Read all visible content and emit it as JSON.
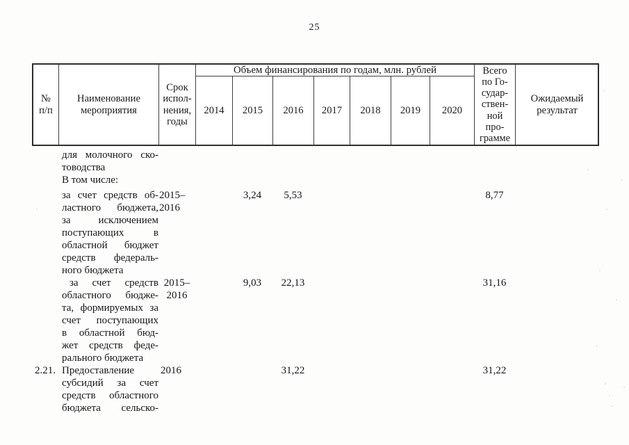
{
  "page": {
    "number": "25"
  },
  "table": {
    "header": {
      "num": "№\nп/п",
      "name": "Наименование\nмероприятия",
      "term": "Срок\nиспол-\nнения,\nгоды",
      "finance_title": "Объем финансирования по годам, млн. рублей",
      "years": [
        "2014",
        "2015",
        "2016",
        "2017",
        "2018",
        "2019",
        "2020"
      ],
      "total": "Всего\nпо Го-\nсудар-\nствен-\nной\nпро-\nграмме",
      "result": "Ожидаемый\nрезультат"
    },
    "rows": [
      {
        "num": "",
        "name_lines": [
          "для молочного ско-",
          "товодства"
        ],
        "term_lines": [],
        "v2015": "",
        "v2016": "",
        "total": ""
      },
      {
        "num": "",
        "name_lines": [
          "В том числе:"
        ],
        "term_lines": [],
        "v2015": "",
        "v2016": "",
        "total": ""
      },
      {
        "num": "",
        "name_lines": [
          "за счет средств об-",
          "ластного бюджета,",
          "за исключением",
          "поступающих в",
          "областной бюджет",
          "средств федераль-",
          "ного бюджета"
        ],
        "term_lines": [
          "2015–",
          "2016"
        ],
        "v2015": "3,24",
        "v2016": "5,53",
        "total": "8,77"
      },
      {
        "num": "",
        "name_lines": [
          "за счет средств",
          "областного бюдже-",
          "та, формируемых за",
          "счет поступающих",
          "в областной бюд-",
          "жет средств феде-",
          "рального бюджета"
        ],
        "term_lines": [
          "2015–",
          "2016"
        ],
        "v2015": "9,03",
        "v2016": "22,13",
        "total": "31,16"
      },
      {
        "num": "2.21.",
        "name_lines": [
          "Предоставление",
          "субсидий за счет",
          "средств областного",
          "бюджета сельско-"
        ],
        "term_lines": [
          "2016"
        ],
        "v2015": "",
        "v2016": "31,22",
        "total": "31,22"
      }
    ]
  }
}
